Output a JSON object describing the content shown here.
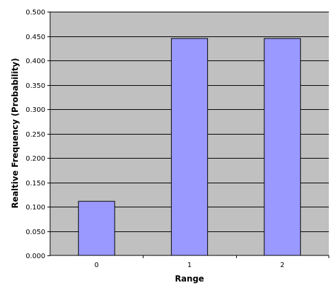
{
  "chart_data": {
    "type": "bar",
    "categories": [
      "0",
      "1",
      "2"
    ],
    "values": [
      0.111,
      0.445,
      0.445
    ],
    "title": "",
    "xlabel": "Range",
    "ylabel": "Realtive Frequency (Probability)",
    "ylim": [
      0,
      0.5
    ],
    "yticks": [
      "0.000",
      "0.050",
      "0.100",
      "0.150",
      "0.200",
      "0.250",
      "0.300",
      "0.350",
      "0.400",
      "0.450",
      "0.500"
    ],
    "grid": true,
    "legend": "none",
    "colors": {
      "plot_background": "#c0c0c0",
      "bar_fill": "#9999ff",
      "bar_stroke": "#000000",
      "gridline": "#000000"
    }
  }
}
